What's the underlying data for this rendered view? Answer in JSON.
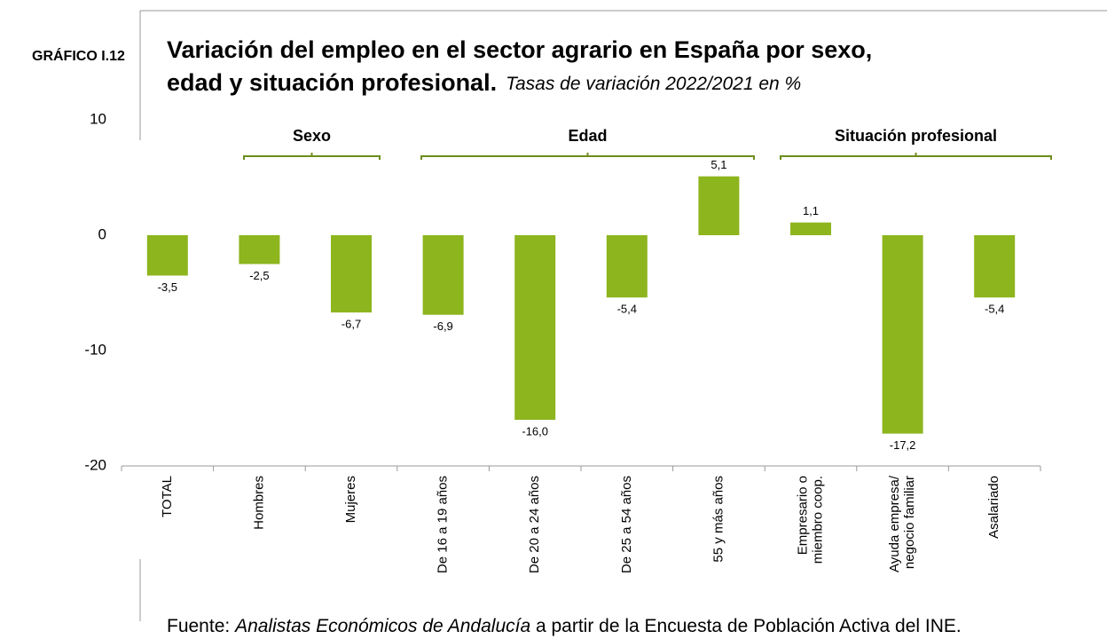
{
  "figure_label": "GRÁFICO I.12",
  "chart_data": {
    "type": "bar",
    "title_lines": [
      "Variación del empleo en el sector agrario en España por sexo,",
      "edad y situación profesional."
    ],
    "subtitle": "Tasas de variación 2022/2021 en %",
    "groups": [
      "Sexo",
      "Edad",
      "Situación profesional"
    ],
    "categories": [
      "TOTAL",
      "Hombres",
      "Mujeres",
      "De 16 a 19 años",
      "De 20 a 24 años",
      "De 25 a 54 años",
      "55 y más años",
      [
        "Empresario o",
        "miembro coop."
      ],
      [
        "Ayuda empresa/",
        "negocio familiar"
      ],
      "Asalariado"
    ],
    "values": [
      -3.5,
      -2.5,
      -6.7,
      -6.9,
      -16.0,
      -5.4,
      5.1,
      1.1,
      -17.2,
      -5.4
    ],
    "value_labels": [
      "-3,5",
      "-2,5",
      "-6,7",
      "-6,9",
      "-16,0",
      "-5,4",
      "5,1",
      "1,1",
      "-17,2",
      "-5,4"
    ],
    "color": "#8db51e",
    "ylim": [
      -20,
      10
    ],
    "yticks": [
      -20,
      -10,
      0,
      10
    ],
    "grid": false
  },
  "source": {
    "prefix": "Fuente: ",
    "italic": "Analistas Económicos de Andalucía",
    "suffix": " a partir de la Encuesta de Población Activa del INE."
  }
}
